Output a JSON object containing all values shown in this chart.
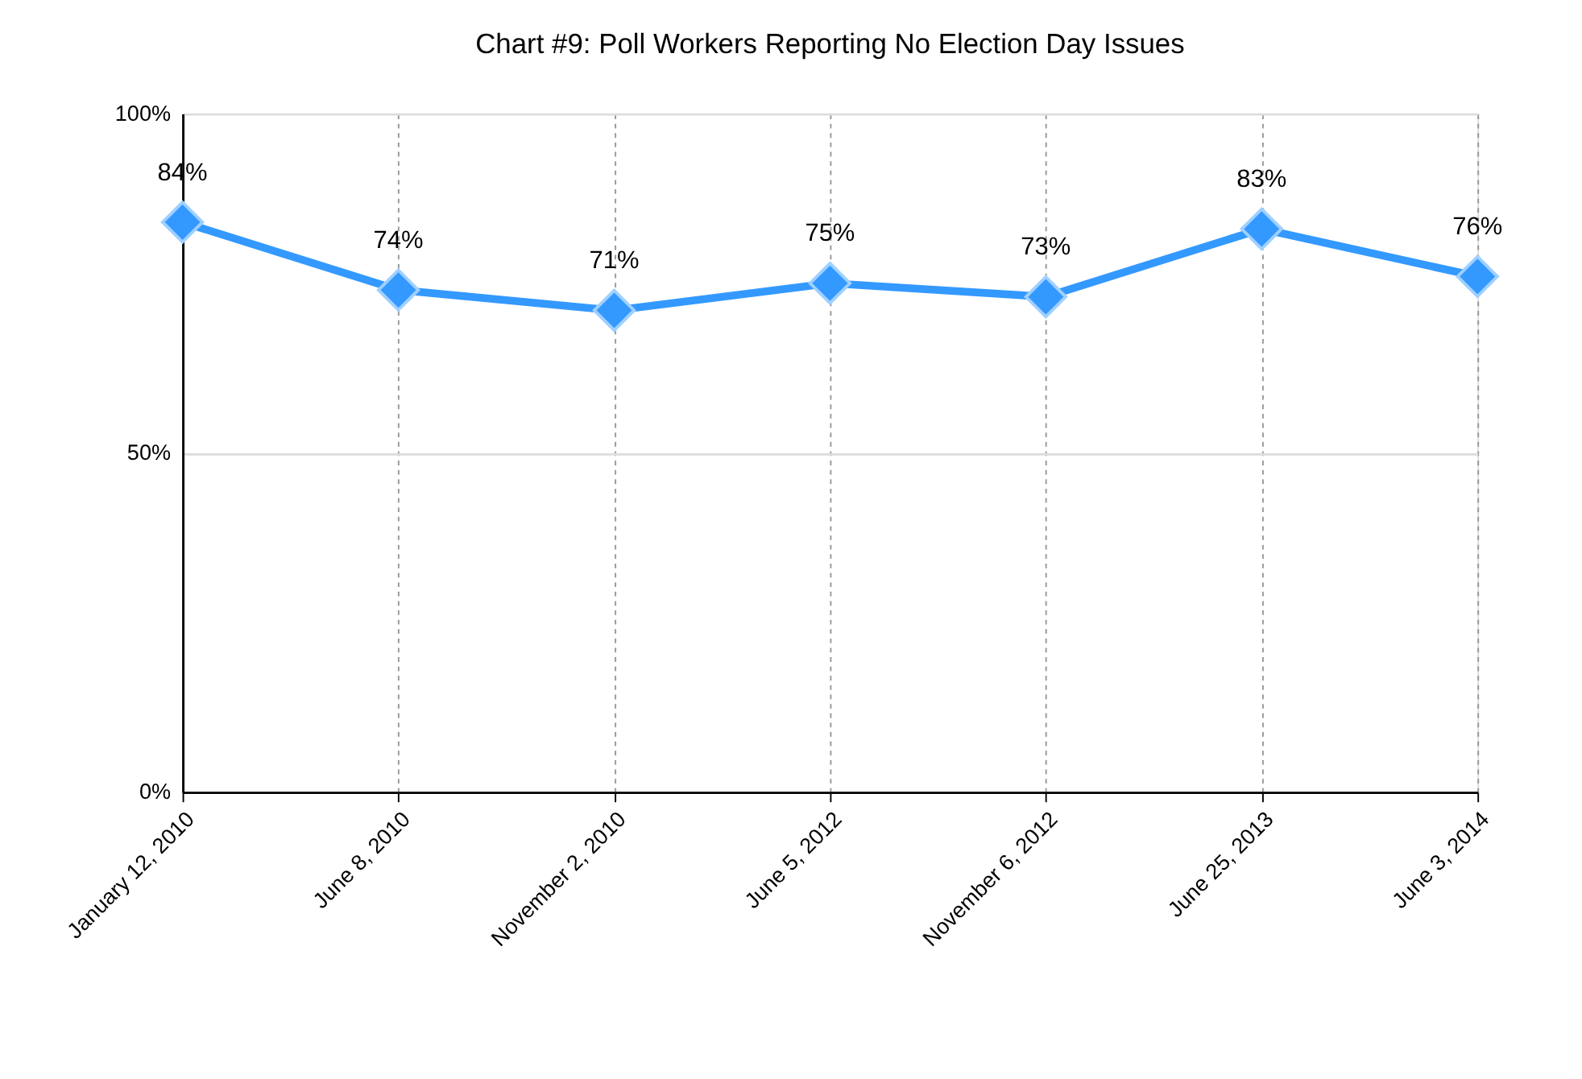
{
  "chart_data": {
    "type": "line",
    "title": "Chart #9:  Poll Workers Reporting No Election Day Issues",
    "categories": [
      "January 12, 2010",
      "June 8, 2010",
      "November 2, 2010",
      "June 5, 2012",
      "November 6, 2012",
      "June 25, 2013",
      "June 3, 2014"
    ],
    "series": [
      {
        "color": "#3399ff",
        "values": [
          84,
          74,
          71,
          75,
          73,
          83,
          76
        ],
        "value_labels": [
          "84%",
          "74%",
          "71%",
          "75%",
          "73%",
          "83%",
          "76%"
        ]
      }
    ],
    "ylim": [
      0,
      100
    ],
    "yticks": [
      {
        "value": 0,
        "label": "0%"
      },
      {
        "value": 50,
        "label": "50%"
      },
      {
        "value": 100,
        "label": "100%"
      }
    ],
    "grid": true,
    "marker": "diamond",
    "line_style": "solid"
  }
}
